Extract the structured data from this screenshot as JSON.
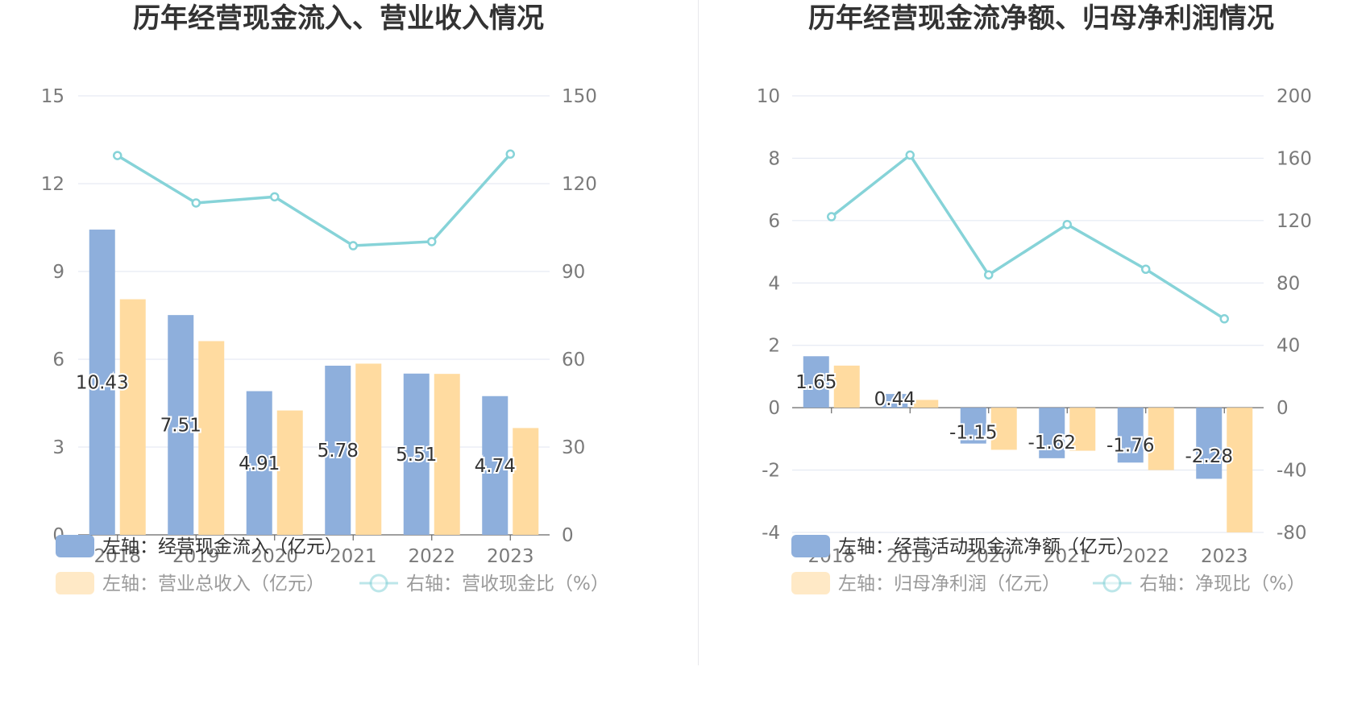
{
  "chart_data": [
    {
      "type": "bar",
      "title": "历年经营现金流入、营业收入情况",
      "categories": [
        "2018",
        "2019",
        "2020",
        "2021",
        "2022",
        "2023"
      ],
      "left_axis": {
        "ticks": [
          "0",
          "3",
          "6",
          "9",
          "12",
          "15"
        ],
        "range": [
          0,
          15
        ]
      },
      "right_axis": {
        "ticks": [
          "0",
          "30",
          "60",
          "90",
          "120",
          "150"
        ],
        "range": [
          0,
          150
        ]
      },
      "series": [
        {
          "name": "左轴：经营现金流入（亿元）",
          "type": "bar",
          "axis": "left",
          "color": "#8eafdc",
          "values": [
            10.43,
            7.51,
            4.91,
            5.78,
            5.51,
            4.74
          ],
          "labels": [
            "10.43",
            "7.51",
            "4.91",
            "5.78",
            "5.51",
            "4.74"
          ]
        },
        {
          "name": "左轴：营业总收入（亿元）",
          "type": "bar",
          "axis": "left",
          "color": "#ffdba0",
          "values": [
            8.05,
            6.62,
            4.25,
            5.85,
            5.5,
            3.65
          ]
        },
        {
          "name": "右轴：营收现金比（%）",
          "type": "line",
          "axis": "right",
          "color": "#86d3d8",
          "values": [
            129.6,
            113.4,
            115.5,
            98.8,
            100.2,
            130.1
          ]
        }
      ],
      "legend_position": "bottom",
      "grid": true
    },
    {
      "type": "bar",
      "title": "历年经营现金流净额、归母净利润情况",
      "categories": [
        "2018",
        "2019",
        "2020",
        "2021",
        "2022",
        "2023"
      ],
      "left_axis": {
        "ticks": [
          "-4",
          "-2",
          "0",
          "2",
          "4",
          "6",
          "8",
          "10"
        ],
        "range": [
          -4,
          10
        ]
      },
      "right_axis": {
        "ticks": [
          "-80",
          "-40",
          "0",
          "40",
          "80",
          "120",
          "160",
          "200"
        ],
        "range": [
          -80,
          200
        ]
      },
      "series": [
        {
          "name": "左轴：经营活动现金流净额（亿元）",
          "type": "bar",
          "axis": "left",
          "color": "#8eafdc",
          "values": [
            1.65,
            0.44,
            -1.15,
            -1.62,
            -1.76,
            -2.28
          ],
          "labels": [
            "1.65",
            "0.44",
            "-1.15",
            "-1.62",
            "-1.76",
            "-2.28"
          ]
        },
        {
          "name": "左轴：归母净利润（亿元）",
          "type": "bar",
          "axis": "left",
          "color": "#ffdba0",
          "values": [
            1.35,
            0.25,
            -1.35,
            -1.38,
            -2.0,
            -4.0
          ]
        },
        {
          "name": "右轴：净现比（%）",
          "type": "line",
          "axis": "right",
          "color": "#86d3d8",
          "values": [
            122.5,
            162.0,
            85.2,
            117.5,
            88.8,
            57.0
          ]
        }
      ],
      "legend_position": "bottom",
      "grid": true
    }
  ]
}
